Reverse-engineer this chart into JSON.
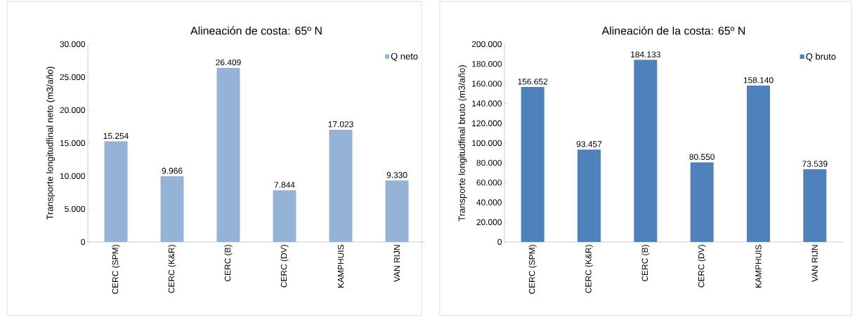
{
  "chart_data": [
    {
      "type": "bar",
      "title": "Alineación de costa: 65º N",
      "ylabel": "Transporte longitudfinal neto (m3/año)",
      "categories": [
        "CERC (SPM)",
        "CERC (K&R)",
        "CERC (B)",
        "CERC (DV)",
        "KAMPHUIS",
        "VAN RIJN"
      ],
      "series": [
        {
          "name": "Q neto",
          "color": "#95b3d7",
          "values": [
            15254,
            9966,
            26409,
            7844,
            17023,
            9330
          ],
          "value_labels": [
            "15.254",
            "9.966",
            "26.409",
            "7.844",
            "17.023",
            "9.330"
          ]
        }
      ],
      "ylim": [
        0,
        30000
      ],
      "yticks": [
        {
          "value": 0,
          "label": "0"
        },
        {
          "value": 5000,
          "label": "5.000"
        },
        {
          "value": 10000,
          "label": "10.000"
        },
        {
          "value": 15000,
          "label": "15.000"
        },
        {
          "value": 20000,
          "label": "20.000"
        },
        {
          "value": 25000,
          "label": "25.000"
        },
        {
          "value": 30000,
          "label": "30.000"
        }
      ],
      "legend": "top right"
    },
    {
      "type": "bar",
      "title": "Alineación de la costa: 65º N",
      "ylabel": "Transporte longitudfinal bruto (m3/año)",
      "categories": [
        "CERC (SPM)",
        "CERC (K&R)",
        "CERC (B)",
        "CERC (DV)",
        "KAMPHUIS",
        "VAN RIJN"
      ],
      "series": [
        {
          "name": "Q bruto",
          "color": "#4f81bd",
          "values": [
            156652,
            93457,
            184133,
            80550,
            158140,
            73539
          ],
          "value_labels": [
            "156.652",
            "93.457",
            "184.133",
            "80.550",
            "158.140",
            "73.539"
          ]
        }
      ],
      "ylim": [
        0,
        200000
      ],
      "yticks": [
        {
          "value": 0,
          "label": "0"
        },
        {
          "value": 20000,
          "label": "20.000"
        },
        {
          "value": 40000,
          "label": "40.000"
        },
        {
          "value": 60000,
          "label": "60.000"
        },
        {
          "value": 80000,
          "label": "80.000"
        },
        {
          "value": 100000,
          "label": "100.000"
        },
        {
          "value": 120000,
          "label": "120.000"
        },
        {
          "value": 140000,
          "label": "140.000"
        },
        {
          "value": 160000,
          "label": "160.000"
        },
        {
          "value": 180000,
          "label": "180.000"
        },
        {
          "value": 200000,
          "label": "200.000"
        }
      ],
      "legend": "top right"
    }
  ]
}
